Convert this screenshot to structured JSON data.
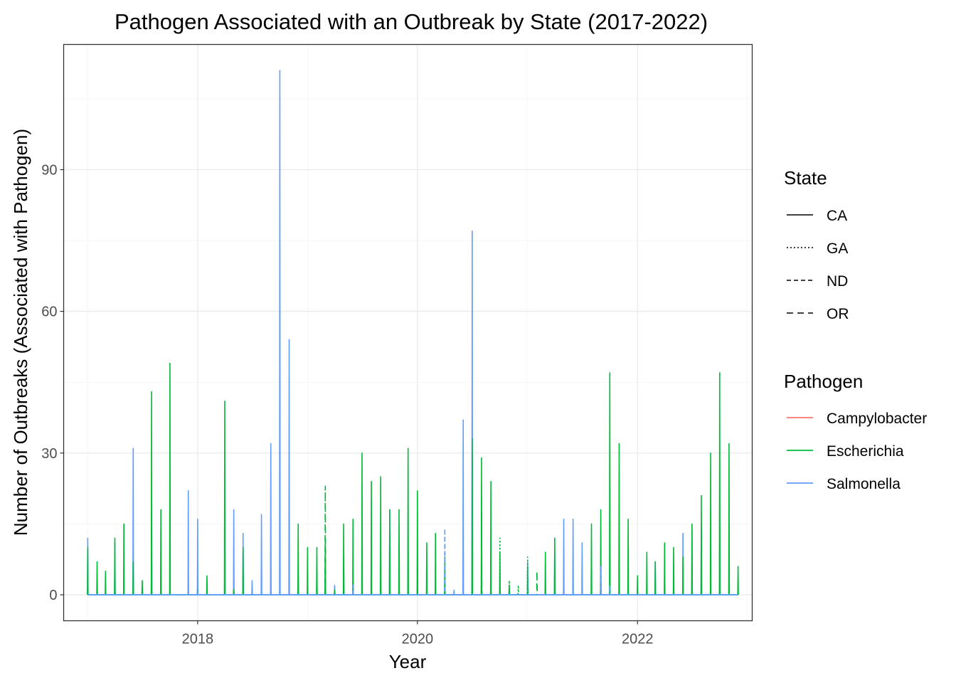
{
  "chart_data": {
    "type": "line",
    "title": "Pathogen Associated with an Outbreak by State (2017-2022)",
    "xlabel": "Year",
    "ylabel": "Number of Outbreaks (Associated with Pathogen)",
    "xlim": [
      "2016-10-13",
      "2023-01-17"
    ],
    "ylim": [
      -5.5,
      116.5
    ],
    "x_ticks": [
      "2018",
      "2020",
      "2022"
    ],
    "x_tick_dates": [
      "2018-01-01",
      "2020-01-01",
      "2022-01-01"
    ],
    "y_ticks": [
      0,
      30,
      60,
      90
    ],
    "grid": true,
    "legend_position": "right",
    "legend": {
      "state": {
        "title": "State",
        "entries": [
          {
            "label": "CA",
            "dash": "solid"
          },
          {
            "label": "GA",
            "dash": "dotted"
          },
          {
            "label": "ND",
            "dash": "dashed"
          },
          {
            "label": "OR",
            "dash": "longdash"
          }
        ]
      },
      "pathogen": {
        "title": "Pathogen",
        "entries": [
          {
            "label": "Campylobacter",
            "color": "#F8766D"
          },
          {
            "label": "Escherichia",
            "color": "#00BA38"
          },
          {
            "label": "Salmonella",
            "color": "#619CFF"
          }
        ]
      }
    },
    "series": [
      {
        "name": "Salmonella",
        "state": "CA",
        "color": "#619CFF",
        "dash": "solid",
        "x": [
          "2017-01-01",
          "2017-02-01",
          "2017-03-01",
          "2017-04-01",
          "2017-05-01",
          "2017-06-01",
          "2017-07-01",
          "2017-08-01",
          "2017-09-01",
          "2017-10-01",
          "2017-11-01",
          "2017-12-01",
          "2018-01-01",
          "2018-02-01",
          "2018-03-01",
          "2018-04-01",
          "2018-05-01",
          "2018-06-01",
          "2018-07-01",
          "2018-08-01",
          "2018-09-01",
          "2018-10-01",
          "2018-11-01",
          "2018-12-01",
          "2019-01-01",
          "2019-02-01",
          "2019-03-01",
          "2019-04-01",
          "2019-05-01",
          "2019-06-01",
          "2019-07-01",
          "2019-08-01",
          "2019-09-01",
          "2019-10-01",
          "2019-11-01",
          "2019-12-01",
          "2020-01-01",
          "2020-02-01",
          "2020-03-01",
          "2020-04-01",
          "2020-05-01",
          "2020-06-01",
          "2020-07-01",
          "2020-08-01",
          "2020-09-01",
          "2020-10-01",
          "2020-11-01",
          "2020-12-01",
          "2021-01-01",
          "2021-02-01",
          "2021-03-01",
          "2021-04-01",
          "2021-05-01",
          "2021-06-01",
          "2021-07-01",
          "2021-08-01",
          "2021-09-01",
          "2021-10-01",
          "2021-11-01",
          "2021-12-01",
          "2022-01-01",
          "2022-02-01",
          "2022-03-01",
          "2022-04-01",
          "2022-05-01",
          "2022-06-01",
          "2022-07-01",
          "2022-08-01",
          "2022-09-01",
          "2022-10-01",
          "2022-11-01",
          "2022-12-01"
        ],
        "values": [
          12,
          0,
          0,
          11,
          0,
          31,
          0,
          14,
          14,
          0,
          0,
          22,
          16,
          0,
          0,
          6,
          18,
          13,
          3,
          17,
          32,
          111,
          54,
          0,
          0,
          0,
          0,
          2,
          8,
          0,
          0,
          0,
          0,
          18,
          0,
          0,
          2,
          0,
          0,
          0,
          0,
          37,
          77,
          0,
          0,
          0,
          0,
          0,
          7,
          0,
          0,
          9,
          16,
          16,
          11,
          0,
          0,
          0,
          0,
          0,
          0,
          0,
          7,
          0,
          0,
          13,
          14,
          15,
          0,
          0,
          0,
          0
        ]
      },
      {
        "name": "Escherichia",
        "state": "CA",
        "color": "#00BA38",
        "dash": "solid",
        "x": [
          "2017-01-01",
          "2017-02-01",
          "2017-03-01",
          "2017-04-01",
          "2017-05-01",
          "2017-06-01",
          "2017-07-01",
          "2017-08-01",
          "2017-09-01",
          "2017-10-01",
          "2017-11-01",
          "2017-12-01",
          "2018-01-01",
          "2018-02-01",
          "2018-03-01",
          "2018-04-01",
          "2018-05-01",
          "2018-06-01",
          "2018-07-01",
          "2018-08-01",
          "2018-09-01",
          "2018-10-01",
          "2018-11-01",
          "2018-12-01",
          "2019-01-01",
          "2019-02-01",
          "2019-03-01",
          "2019-04-01",
          "2019-05-01",
          "2019-06-01",
          "2019-07-01",
          "2019-08-01",
          "2019-09-01",
          "2019-10-01",
          "2019-11-01",
          "2019-12-01",
          "2020-01-01",
          "2020-02-01",
          "2020-03-01",
          "2020-04-01",
          "2020-05-01",
          "2020-06-01",
          "2020-07-01",
          "2020-08-01",
          "2020-09-01",
          "2020-10-01",
          "2020-11-01",
          "2020-12-01",
          "2021-01-01",
          "2021-02-01",
          "2021-03-01",
          "2021-04-01",
          "2021-05-01",
          "2021-06-01",
          "2021-07-01",
          "2021-08-01",
          "2021-09-01",
          "2021-10-01",
          "2021-11-01",
          "2021-12-01",
          "2022-01-01",
          "2022-02-01",
          "2022-03-01",
          "2022-04-01",
          "2022-05-01",
          "2022-06-01",
          "2022-07-01",
          "2022-08-01",
          "2022-09-01",
          "2022-10-01",
          "2022-11-01",
          "2022-12-01"
        ],
        "values": [
          10,
          7,
          5,
          12,
          15,
          7,
          3,
          43,
          18,
          49,
          0,
          0,
          1,
          4,
          0,
          41,
          1,
          10,
          0,
          0,
          0,
          0,
          0,
          15,
          10,
          10,
          12,
          1,
          15,
          16,
          30,
          24,
          25,
          18,
          18,
          31,
          22,
          11,
          13,
          8,
          0,
          0,
          33,
          29,
          24,
          9,
          2,
          0,
          0,
          0,
          9,
          12,
          0,
          0,
          0,
          15,
          18,
          47,
          32,
          16,
          4,
          9,
          7,
          11,
          10,
          8,
          15,
          21,
          30,
          47,
          32,
          6
        ]
      },
      {
        "name": "Escherichia",
        "state": "GA",
        "color": "#00BA38",
        "dash": "dotted",
        "x": [
          "2018-12-01",
          "2019-01-01",
          "2019-02-01",
          "2019-03-01",
          "2020-08-01",
          "2020-09-01",
          "2020-10-01",
          "2020-11-01",
          "2020-12-01",
          "2021-01-01"
        ],
        "values": [
          4,
          1,
          5,
          3,
          2,
          1,
          12,
          3,
          2,
          8
        ]
      },
      {
        "name": "Salmonella",
        "state": "ND",
        "color": "#619CFF",
        "dash": "dashed",
        "x": [
          "2018-01-01",
          "2019-06-01",
          "2020-04-01",
          "2020-05-01",
          "2020-06-01",
          "2021-09-01",
          "2021-10-01"
        ],
        "values": [
          1,
          2,
          14,
          1,
          1,
          6,
          2
        ]
      },
      {
        "name": "Escherichia",
        "state": "OR",
        "color": "#00BA38",
        "dash": "longdash",
        "x": [
          "2019-03-01",
          "2020-07-01",
          "2020-08-01",
          "2020-09-01",
          "2021-01-01",
          "2021-02-01"
        ],
        "values": [
          23,
          1,
          12,
          2,
          6,
          5
        ]
      }
    ]
  }
}
